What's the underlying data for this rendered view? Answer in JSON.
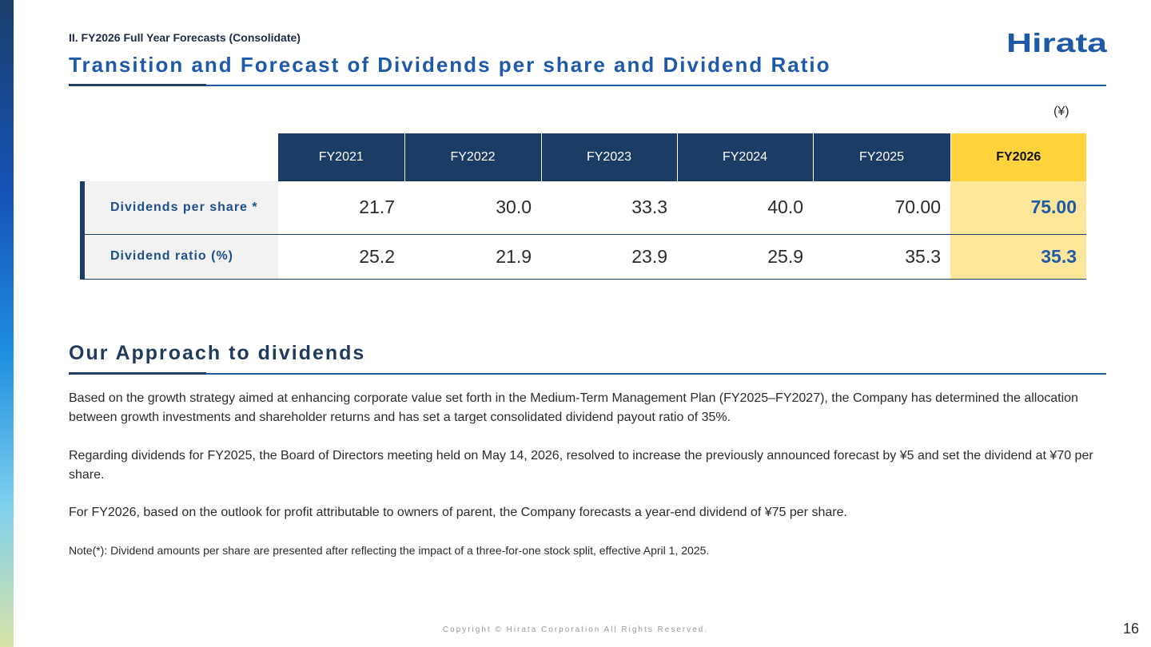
{
  "header": {
    "section_label": "II. FY2026 Full Year Forecasts (Consolidate)",
    "title": "Transition and Forecast of Dividends per share and Dividend Ratio",
    "logo_text": "Hirata"
  },
  "table": {
    "unit": "(¥)",
    "columns": [
      "FY2021",
      "FY2022",
      "FY2023",
      "FY2024",
      "FY2025",
      "FY2026"
    ],
    "rows": [
      {
        "label": "Dividends per share *",
        "values": [
          "21.7",
          "30.0",
          "33.3",
          "40.0",
          "70.00",
          "75.00"
        ]
      },
      {
        "label": "Dividend ratio (%)",
        "values": [
          "25.2",
          "21.9",
          "23.9",
          "25.9",
          "35.3",
          "35.3"
        ]
      }
    ],
    "colors": {
      "header_bg": "#1b3c64",
      "highlight_header": "#ffd33c",
      "highlight_cell": "#fee79a",
      "highlight_text": "#1e5aa8"
    }
  },
  "approach": {
    "title": "Our Approach to dividends",
    "paragraphs": [
      "Based on the growth strategy aimed at enhancing corporate value set forth in the Medium-Term Management Plan (FY2025–FY2027), the Company has determined the allocation between growth investments and shareholder returns and has set a target consolidated dividend payout ratio of 35%.",
      "Regarding dividends for FY2025, the Board of Directors meeting held on May 14, 2026, resolved to increase the previously announced forecast by ¥5 and set the dividend at ¥70 per share.",
      "For FY2026, based on the outlook for profit attributable to owners of parent, the Company forecasts a year-end dividend of ¥75 per share."
    ],
    "note": "Note(*): Dividend amounts per share are presented after reflecting the impact of a three-for-one stock split, effective April 1, 2025."
  },
  "footer": {
    "copyright": "Copyright © Hirata Corporation All Rights Reserved.",
    "page_number": "16"
  }
}
